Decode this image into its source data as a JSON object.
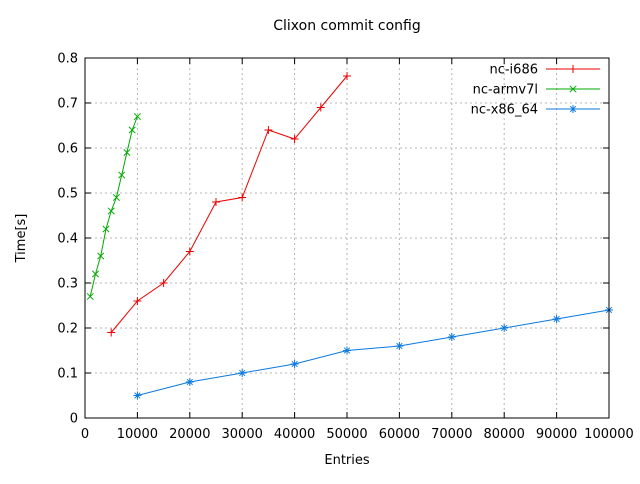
{
  "title": "Clixon commit config",
  "colors": {
    "background": "#ffffff",
    "border": "#000000",
    "grid": "#b5b5b5",
    "text": "#000000",
    "series_red": "#ee0000",
    "series_green": "#00a800",
    "series_blue": "#0b79dd"
  },
  "axes": {
    "x_tick_labels": [
      "0",
      "10000",
      "20000",
      "30000",
      "40000",
      "50000",
      "60000",
      "70000",
      "80000",
      "90000",
      "100000"
    ],
    "y_tick_labels": [
      "0",
      "0.1",
      "0.2",
      "0.3",
      "0.4",
      "0.5",
      "0.6",
      "0.7",
      "0.8"
    ]
  },
  "legend": {
    "entries": [
      "nc-i686",
      "nc-armv7l",
      "nc-x86_64"
    ]
  },
  "chart_data": {
    "type": "line",
    "title": "Clixon commit config",
    "xlabel": "Entries",
    "ylabel": "Time[s]",
    "xlim": [
      0,
      100000
    ],
    "ylim": [
      0,
      0.8
    ],
    "x_ticks": [
      0,
      10000,
      20000,
      30000,
      40000,
      50000,
      60000,
      70000,
      80000,
      90000,
      100000
    ],
    "y_ticks": [
      0,
      0.1,
      0.2,
      0.3,
      0.4,
      0.5,
      0.6,
      0.7,
      0.8
    ],
    "grid": true,
    "grid_style": "dashed",
    "legend_position": "top-right-inside",
    "series": [
      {
        "name": "nc-i686",
        "color": "#ee0000",
        "marker": "plus",
        "x": [
          5000,
          10000,
          15000,
          20000,
          25000,
          30000,
          35000,
          40000,
          45000,
          50000
        ],
        "y": [
          0.19,
          0.26,
          0.3,
          0.37,
          0.48,
          0.49,
          0.64,
          0.62,
          0.69,
          0.76
        ]
      },
      {
        "name": "nc-armv7l",
        "color": "#00a800",
        "marker": "x",
        "x": [
          1000,
          2000,
          3000,
          4000,
          5000,
          6000,
          7000,
          8000,
          9000,
          10000
        ],
        "y": [
          0.27,
          0.32,
          0.36,
          0.42,
          0.46,
          0.49,
          0.54,
          0.59,
          0.64,
          0.67
        ]
      },
      {
        "name": "nc-x86_64",
        "color": "#0b79dd",
        "marker": "star",
        "x": [
          10000,
          20000,
          30000,
          40000,
          50000,
          60000,
          70000,
          80000,
          90000,
          100000
        ],
        "y": [
          0.05,
          0.08,
          0.1,
          0.12,
          0.15,
          0.16,
          0.18,
          0.2,
          0.22,
          0.24
        ]
      }
    ]
  }
}
